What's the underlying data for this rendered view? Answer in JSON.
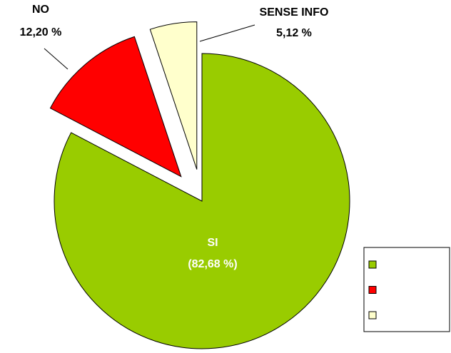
{
  "chart_data": {
    "type": "pie",
    "categories": [
      "SI",
      "NO",
      "SENSE INFO"
    ],
    "values": [
      82.68,
      12.2,
      5.12
    ],
    "value_labels": [
      "(82,68 %)",
      "12,20 %",
      "5,12 %"
    ],
    "colors": [
      "#99cc00",
      "#ff0000",
      "#ffffcc"
    ],
    "legend": "right"
  }
}
